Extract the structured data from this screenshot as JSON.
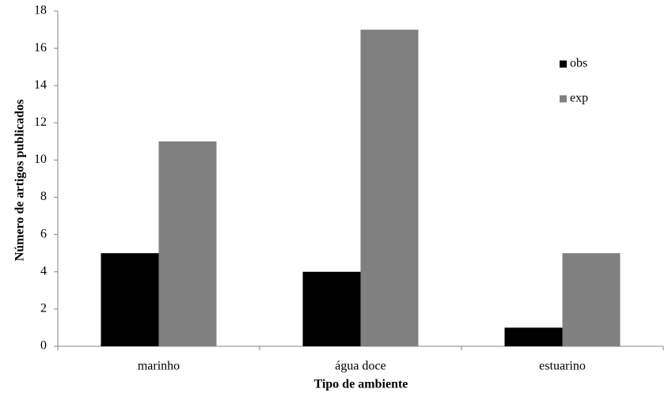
{
  "chart_data": {
    "type": "bar",
    "x_label": "Tipo de ambiente",
    "y_label": "Número de artigos publicados",
    "categories": [
      "marinho",
      "água doce",
      "estuarino"
    ],
    "series": [
      {
        "name": "obs",
        "color": "#000000",
        "values": [
          5,
          4,
          1
        ]
      },
      {
        "name": "exp",
        "color": "#808080",
        "values": [
          11,
          17,
          5
        ]
      }
    ],
    "ylim": [
      0,
      18
    ],
    "yticks": [
      0,
      2,
      4,
      6,
      8,
      10,
      12,
      14,
      16,
      18
    ],
    "grid": false,
    "legend": "upper right"
  }
}
